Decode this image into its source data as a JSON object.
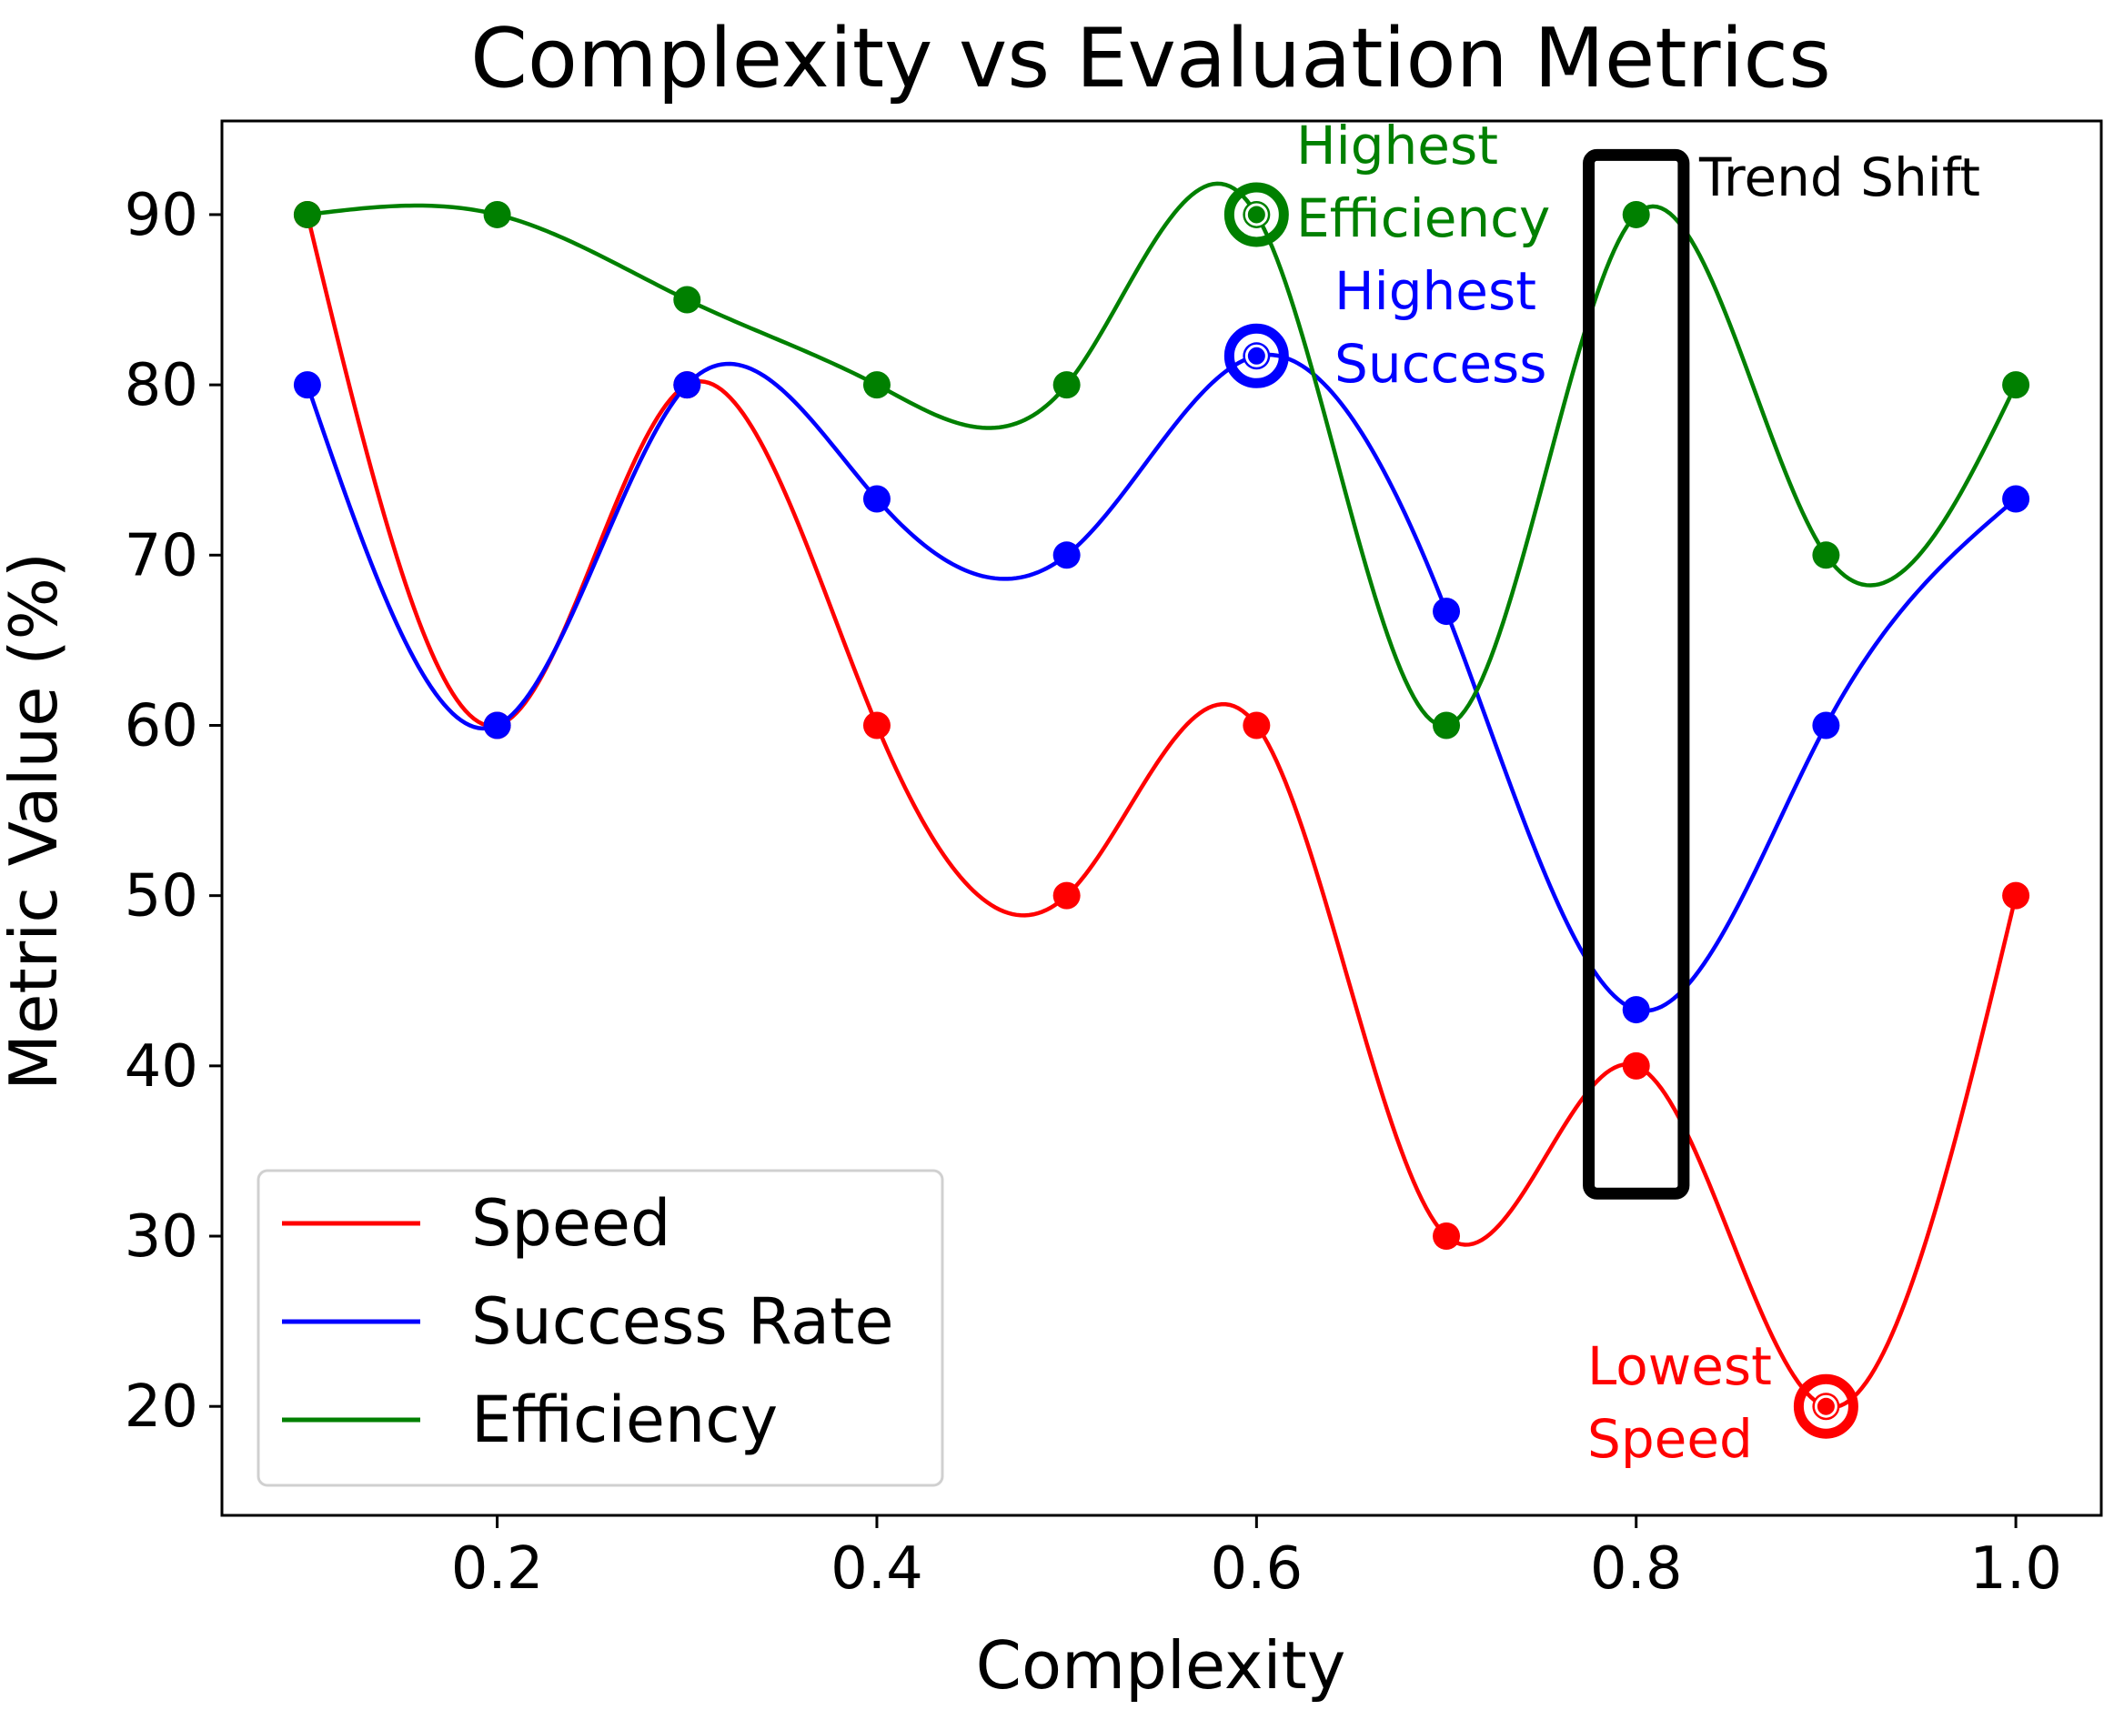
{
  "chart_data": {
    "type": "line",
    "title": "Complexity vs Evaluation Metrics",
    "xlabel": "Complexity",
    "ylabel": "Metric Value (%)",
    "xlim": [
      0.055,
      1.045
    ],
    "ylim": [
      13.6,
      95.5
    ],
    "x": [
      0.1,
      0.2,
      0.3,
      0.4,
      0.5,
      0.6,
      0.7,
      0.8,
      0.9,
      1.0
    ],
    "xticks": [
      0.2,
      0.4,
      0.6,
      0.8,
      1.0
    ],
    "xtick_labels": [
      "0.2",
      "0.4",
      "0.6",
      "0.8",
      "1.0"
    ],
    "yticks": [
      20,
      30,
      40,
      50,
      60,
      70,
      80,
      90
    ],
    "ytick_labels": [
      "20",
      "30",
      "40",
      "50",
      "60",
      "70",
      "80",
      "90"
    ],
    "grid": false,
    "legend_position": "lower-left",
    "series": [
      {
        "name": "Speed",
        "color": "#ff0000",
        "values": [
          90,
          60,
          80,
          60,
          50,
          60,
          30,
          40,
          20,
          50
        ]
      },
      {
        "name": "Success Rate",
        "color": "#0000ff",
        "values": [
          80,
          60,
          80,
          73.3,
          70,
          81.7,
          66.7,
          43.3,
          60,
          73.3
        ]
      },
      {
        "name": "Efficiency",
        "color": "#008000",
        "values": [
          90,
          90,
          85,
          80,
          80,
          90,
          60,
          90,
          70,
          80
        ]
      }
    ],
    "highlights": [
      {
        "id": "highest-efficiency",
        "series": "Efficiency",
        "x": 0.6,
        "y": 90,
        "color": "#008000",
        "label_lines": [
          "Highest",
          "Efficiency"
        ]
      },
      {
        "id": "highest-success",
        "series": "Success Rate",
        "x": 0.6,
        "y": 81.7,
        "color": "#0000ff",
        "label_lines": [
          "Highest",
          "Success"
        ]
      },
      {
        "id": "lowest-speed",
        "series": "Speed",
        "x": 0.9,
        "y": 20,
        "color": "#ff0000",
        "label_lines": [
          "Lowest",
          "Speed"
        ]
      }
    ],
    "trend_box": {
      "label": "Trend Shift",
      "x_range": [
        0.775,
        0.825
      ],
      "y_range": [
        32.5,
        93.5
      ],
      "color": "#000000"
    }
  }
}
